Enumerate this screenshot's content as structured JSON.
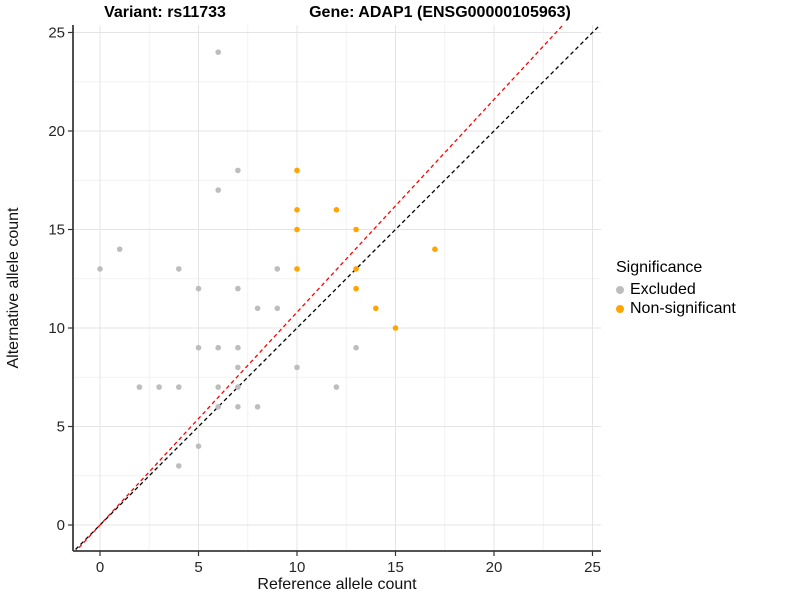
{
  "header": {
    "variant_title": "Variant: rs11733",
    "gene_title": "Gene: ADAP1 (ENSG00000105963)"
  },
  "chart_data": {
    "type": "scatter",
    "xlabel": "Reference allele count",
    "ylabel": "Alternative allele count",
    "xlim": [
      -1.35,
      25.4
    ],
    "ylim": [
      -1.35,
      25.4
    ],
    "x_ticks": [
      0,
      5,
      10,
      15,
      20,
      25
    ],
    "y_ticks": [
      0,
      5,
      10,
      15,
      20,
      25
    ],
    "minor_ticks": [
      2.5,
      7.5,
      12.5,
      17.5,
      22.5
    ],
    "grid": "on",
    "series": [
      {
        "name": "Excluded",
        "color": "#BDBDBD",
        "points": [
          [
            6,
            24
          ],
          [
            7,
            18
          ],
          [
            6,
            17
          ],
          [
            1,
            14
          ],
          [
            0,
            13
          ],
          [
            4,
            13
          ],
          [
            9,
            13
          ],
          [
            5,
            12
          ],
          [
            7,
            12
          ],
          [
            8,
            11
          ],
          [
            9,
            11
          ],
          [
            5,
            9
          ],
          [
            6,
            9
          ],
          [
            7,
            9
          ],
          [
            13,
            9
          ],
          [
            7,
            8
          ],
          [
            10,
            8
          ],
          [
            2,
            7
          ],
          [
            3,
            7
          ],
          [
            4,
            7
          ],
          [
            6,
            7
          ],
          [
            7,
            7
          ],
          [
            12,
            7
          ],
          [
            6,
            6
          ],
          [
            7,
            6
          ],
          [
            8,
            6
          ],
          [
            5,
            4
          ],
          [
            4,
            3
          ]
        ]
      },
      {
        "name": "Non-significant",
        "color": "#FFA400",
        "points": [
          [
            10,
            18
          ],
          [
            10,
            16
          ],
          [
            12,
            16
          ],
          [
            10,
            15
          ],
          [
            13,
            15
          ],
          [
            17,
            14
          ],
          [
            10,
            13
          ],
          [
            13,
            13
          ],
          [
            13,
            12
          ],
          [
            14,
            11
          ],
          [
            15,
            10
          ]
        ]
      }
    ],
    "lines": [
      {
        "name": "identity-line",
        "color": "#000000",
        "slope": 1.0,
        "intercept": 0,
        "style": "dashed"
      },
      {
        "name": "expected-ratio-line",
        "color": "#FF0000",
        "slope": 1.08,
        "intercept": 0,
        "style": "dashed"
      }
    ],
    "legend": {
      "title": "Significance",
      "position": "right",
      "items": [
        {
          "label": "Excluded",
          "color": "#BDBDBD"
        },
        {
          "label": "Non-significant",
          "color": "#FFA400"
        }
      ]
    }
  }
}
